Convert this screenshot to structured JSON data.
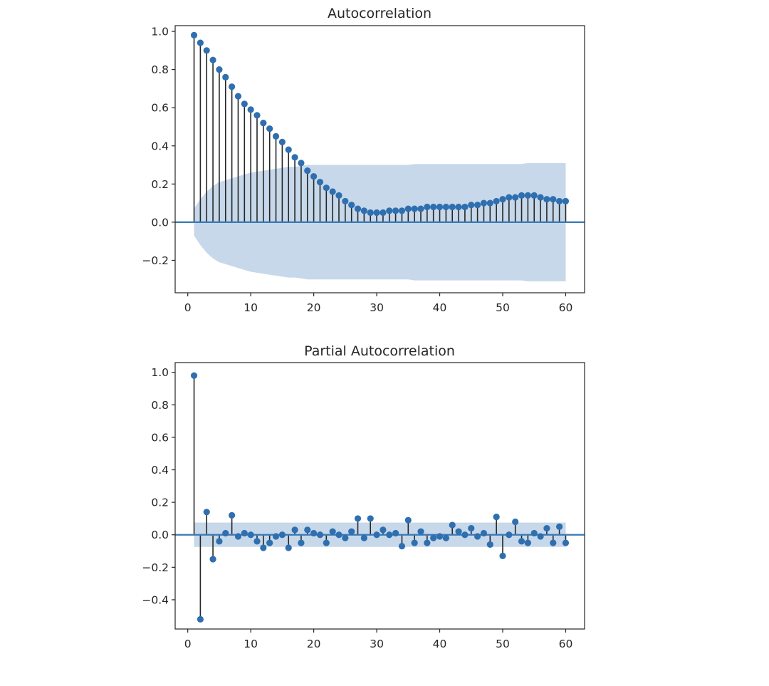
{
  "colors": {
    "stem": "#262626",
    "marker": "#2f6fb0",
    "zero_line": "#3a7ab8",
    "confidence_band": "#c6d8e9",
    "axes": "#262626"
  },
  "chart_data": [
    {
      "type": "stem",
      "title": "Autocorrelation",
      "xlabel": "",
      "ylabel": "",
      "xlim": [
        -2,
        63
      ],
      "ylim": [
        -0.37,
        1.03
      ],
      "xticks": [
        0,
        10,
        20,
        30,
        40,
        50,
        60
      ],
      "yticks": [
        -0.2,
        0.0,
        0.2,
        0.4,
        0.6,
        0.8,
        1.0
      ],
      "ytick_labels": [
        "−0.2",
        "0.0",
        "0.2",
        "0.4",
        "0.6",
        "0.8",
        "1.0"
      ],
      "grid": false,
      "lags": [
        1,
        2,
        3,
        4,
        5,
        6,
        7,
        8,
        9,
        10,
        11,
        12,
        13,
        14,
        15,
        16,
        17,
        18,
        19,
        20,
        21,
        22,
        23,
        24,
        25,
        26,
        27,
        28,
        29,
        30,
        31,
        32,
        33,
        34,
        35,
        36,
        37,
        38,
        39,
        40,
        41,
        42,
        43,
        44,
        45,
        46,
        47,
        48,
        49,
        50,
        51,
        52,
        53,
        54,
        55,
        56,
        57,
        58,
        59,
        60
      ],
      "values": [
        0.98,
        0.94,
        0.9,
        0.85,
        0.8,
        0.76,
        0.71,
        0.66,
        0.62,
        0.59,
        0.56,
        0.52,
        0.49,
        0.45,
        0.42,
        0.38,
        0.34,
        0.31,
        0.27,
        0.24,
        0.21,
        0.18,
        0.16,
        0.14,
        0.11,
        0.09,
        0.07,
        0.06,
        0.05,
        0.05,
        0.05,
        0.06,
        0.06,
        0.06,
        0.07,
        0.07,
        0.07,
        0.08,
        0.08,
        0.08,
        0.08,
        0.08,
        0.08,
        0.08,
        0.09,
        0.09,
        0.1,
        0.1,
        0.11,
        0.12,
        0.13,
        0.13,
        0.14,
        0.14,
        0.14,
        0.13,
        0.12,
        0.12,
        0.11,
        0.11
      ],
      "confidence_band_upper": [
        0.07,
        0.12,
        0.16,
        0.19,
        0.21,
        0.22,
        0.23,
        0.24,
        0.25,
        0.26,
        0.265,
        0.27,
        0.275,
        0.28,
        0.285,
        0.29,
        0.29,
        0.295,
        0.3,
        0.3,
        0.3,
        0.3,
        0.3,
        0.3,
        0.3,
        0.3,
        0.3,
        0.3,
        0.3,
        0.3,
        0.3,
        0.3,
        0.3,
        0.3,
        0.3,
        0.305,
        0.305,
        0.305,
        0.305,
        0.305,
        0.305,
        0.305,
        0.305,
        0.305,
        0.305,
        0.305,
        0.305,
        0.305,
        0.305,
        0.305,
        0.305,
        0.305,
        0.305,
        0.31,
        0.31,
        0.31,
        0.31,
        0.31,
        0.31,
        0.31
      ]
    },
    {
      "type": "stem",
      "title": "Partial Autocorrelation",
      "xlabel": "",
      "ylabel": "",
      "xlim": [
        -2,
        63
      ],
      "ylim": [
        -0.58,
        1.06
      ],
      "xticks": [
        0,
        10,
        20,
        30,
        40,
        50,
        60
      ],
      "yticks": [
        -0.4,
        -0.2,
        0.0,
        0.2,
        0.4,
        0.6,
        0.8,
        1.0
      ],
      "ytick_labels": [
        "−0.4",
        "−0.2",
        "0.0",
        "0.2",
        "0.4",
        "0.6",
        "0.8",
        "1.0"
      ],
      "grid": false,
      "lags": [
        1,
        2,
        3,
        4,
        5,
        6,
        7,
        8,
        9,
        10,
        11,
        12,
        13,
        14,
        15,
        16,
        17,
        18,
        19,
        20,
        21,
        22,
        23,
        24,
        25,
        26,
        27,
        28,
        29,
        30,
        31,
        32,
        33,
        34,
        35,
        36,
        37,
        38,
        39,
        40,
        41,
        42,
        43,
        44,
        45,
        46,
        47,
        48,
        49,
        50,
        51,
        52,
        53,
        54,
        55,
        56,
        57,
        58,
        59,
        60
      ],
      "values": [
        0.98,
        -0.52,
        0.14,
        -0.15,
        -0.04,
        0.01,
        0.12,
        -0.01,
        0.01,
        0.0,
        -0.04,
        -0.08,
        -0.05,
        -0.01,
        0.0,
        -0.08,
        0.03,
        -0.05,
        0.03,
        0.01,
        0.0,
        -0.05,
        0.02,
        0.0,
        -0.02,
        0.02,
        0.1,
        -0.02,
        0.1,
        0.0,
        0.03,
        0.0,
        0.01,
        -0.07,
        0.09,
        -0.05,
        0.02,
        -0.05,
        -0.02,
        -0.01,
        -0.02,
        0.06,
        0.02,
        0.0,
        0.04,
        -0.01,
        0.01,
        -0.06,
        0.11,
        -0.13,
        0.0,
        0.08,
        -0.04,
        -0.05,
        0.01,
        -0.01,
        0.04,
        -0.05,
        0.05,
        -0.05
      ],
      "confidence_band_upper": 0.075
    }
  ]
}
